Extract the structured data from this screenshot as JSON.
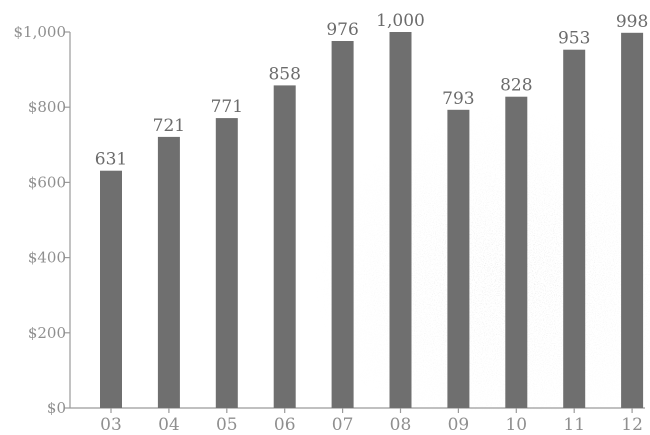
{
  "chart_data": {
    "type": "bar",
    "title": "",
    "xlabel": "",
    "ylabel": "",
    "categories": [
      "03",
      "04",
      "05",
      "06",
      "07",
      "08",
      "09",
      "10",
      "11",
      "12"
    ],
    "values": [
      631,
      721,
      771,
      858,
      976,
      1000,
      793,
      828,
      953,
      998
    ],
    "data_labels": [
      "631",
      "721",
      "771",
      "858",
      "976",
      "1,000",
      "793",
      "828",
      "953",
      "998"
    ],
    "ylim": [
      0,
      1000
    ],
    "y_ticks": [
      0,
      200,
      400,
      600,
      800,
      1000
    ],
    "y_tick_labels": [
      "$0",
      "$200",
      "$400",
      "$600",
      "$800",
      "$1,000"
    ],
    "grid": false,
    "legend": "none",
    "colors": {
      "bar": "#6f6f6f",
      "axis": "#9a9a9a",
      "text": "#8f8f8f",
      "label": "#6b6b6b"
    }
  }
}
